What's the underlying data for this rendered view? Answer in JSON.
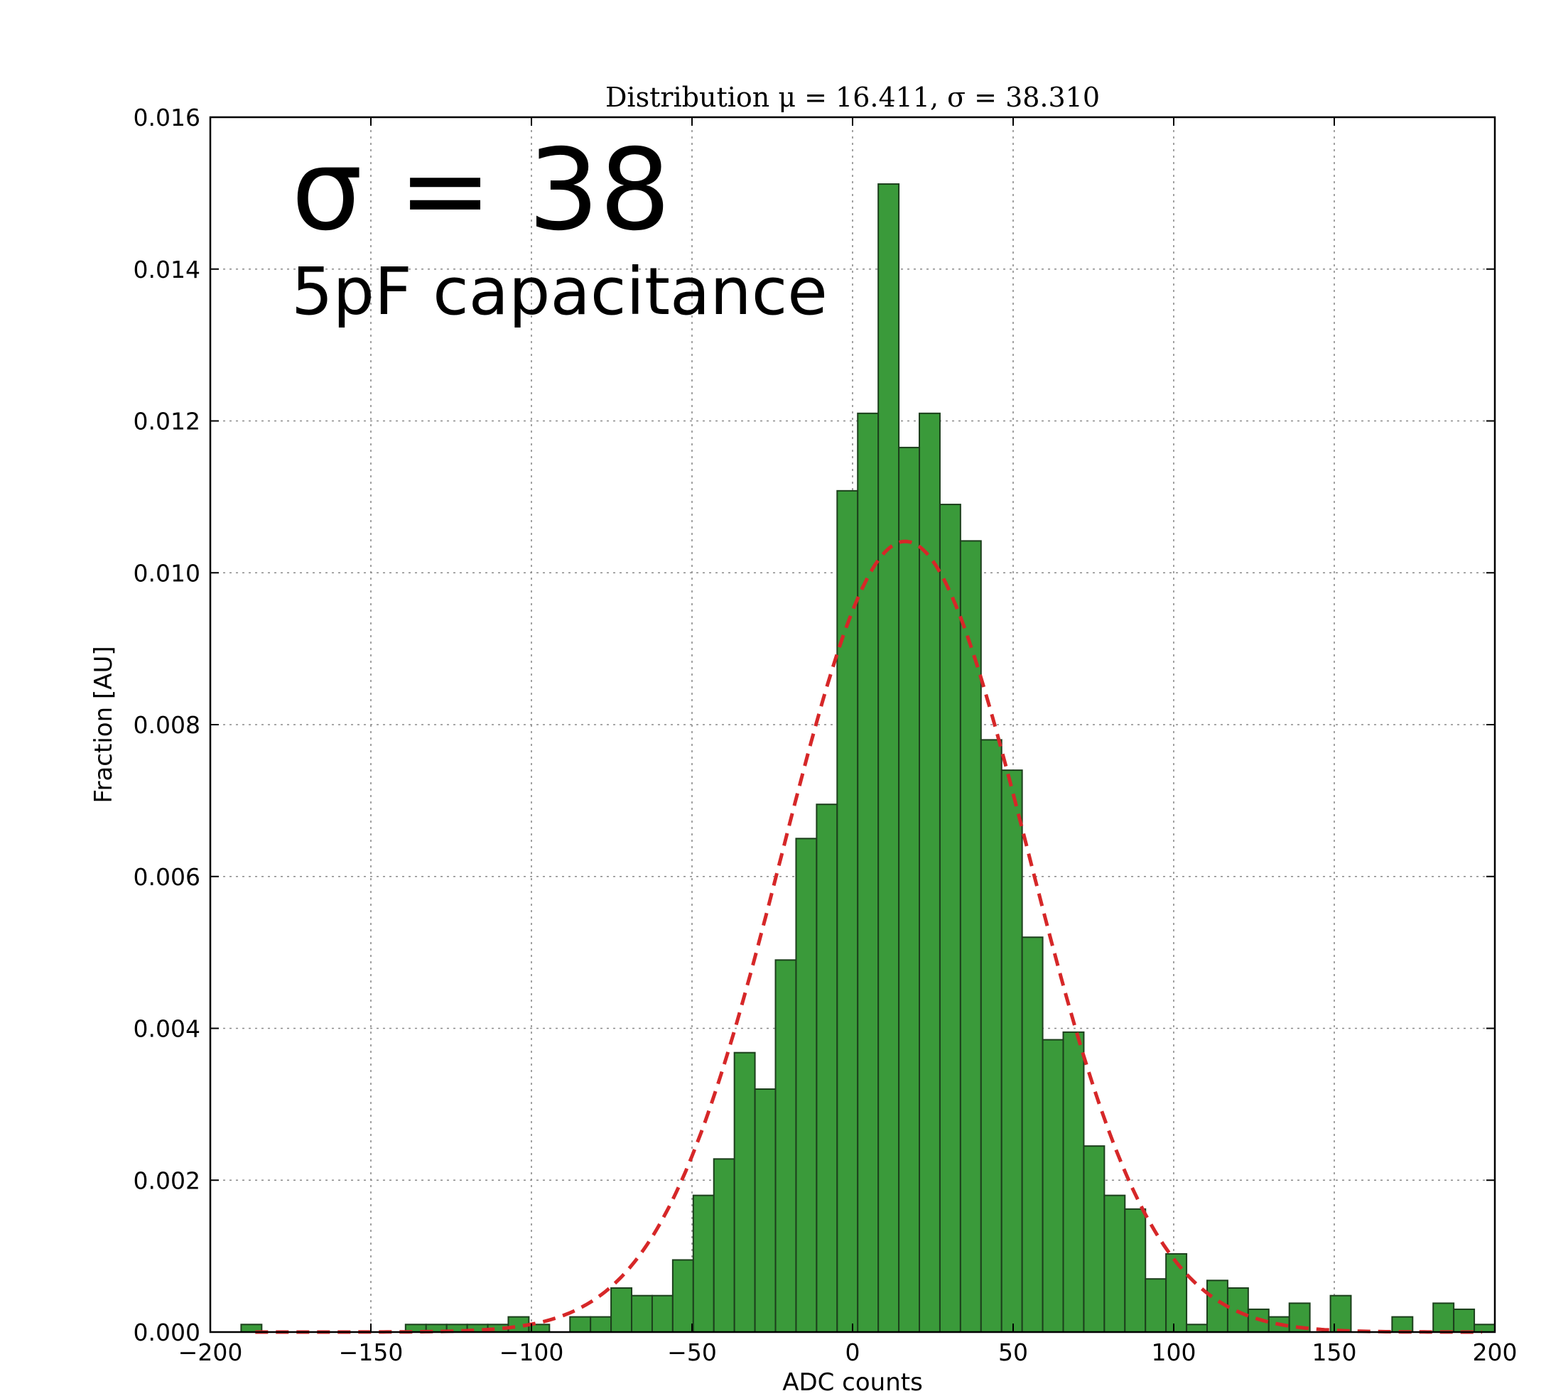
{
  "chart_data": {
    "type": "bar",
    "title": "Distribution μ = 16.411,  σ = 38.310",
    "xlabel": "ADC counts",
    "ylabel": "Fraction [AU]",
    "xlim": [
      -200,
      200
    ],
    "ylim": [
      0,
      0.016
    ],
    "x_ticks": [
      -200,
      -150,
      -100,
      -50,
      0,
      50,
      100,
      150,
      200
    ],
    "x_tick_labels": [
      "−200",
      "−150",
      "−100",
      "−50",
      "0",
      "50",
      "100",
      "150",
      "200"
    ],
    "y_ticks": [
      0,
      0.002,
      0.004,
      0.006,
      0.008,
      0.01,
      0.012,
      0.014,
      0.016
    ],
    "y_tick_labels": [
      "0.000",
      "0.002",
      "0.004",
      "0.006",
      "0.008",
      "0.010",
      "0.012",
      "0.014",
      "0.016"
    ],
    "grid": true,
    "bin_width": 6.4,
    "bin_edges_start": -190.4,
    "values": [
      0.0001,
      0,
      0,
      0,
      0,
      0,
      0,
      0,
      0.0001,
      0.0001,
      0.0001,
      0.0001,
      0.0001,
      0.0002,
      0.0001,
      0,
      0.0002,
      0.0002,
      0.00058,
      0.00048,
      0.00048,
      0.00095,
      0.0018,
      0.00228,
      0.00368,
      0.0032,
      0.0049,
      0.0065,
      0.00695,
      0.01108,
      0.0121,
      0.01512,
      0.01165,
      0.0121,
      0.0109,
      0.01042,
      0.0078,
      0.0074,
      0.0052,
      0.00385,
      0.00395,
      0.00245,
      0.0018,
      0.00162,
      0.0007,
      0.00103,
      0.0001,
      0.00068,
      0.00058,
      0.0003,
      0.0002,
      0.00038,
      0,
      0.00048,
      0,
      0,
      0.0002,
      0,
      0.00038,
      0.0003,
      0.0001
    ],
    "bar_color": "#3a9a3a",
    "fit": {
      "type": "gaussian",
      "mu": 16.411,
      "sigma": 38.31,
      "color": "#d62728"
    }
  },
  "annotations": {
    "sigma": "σ = 38",
    "capacitance": "5pF capacitance"
  }
}
